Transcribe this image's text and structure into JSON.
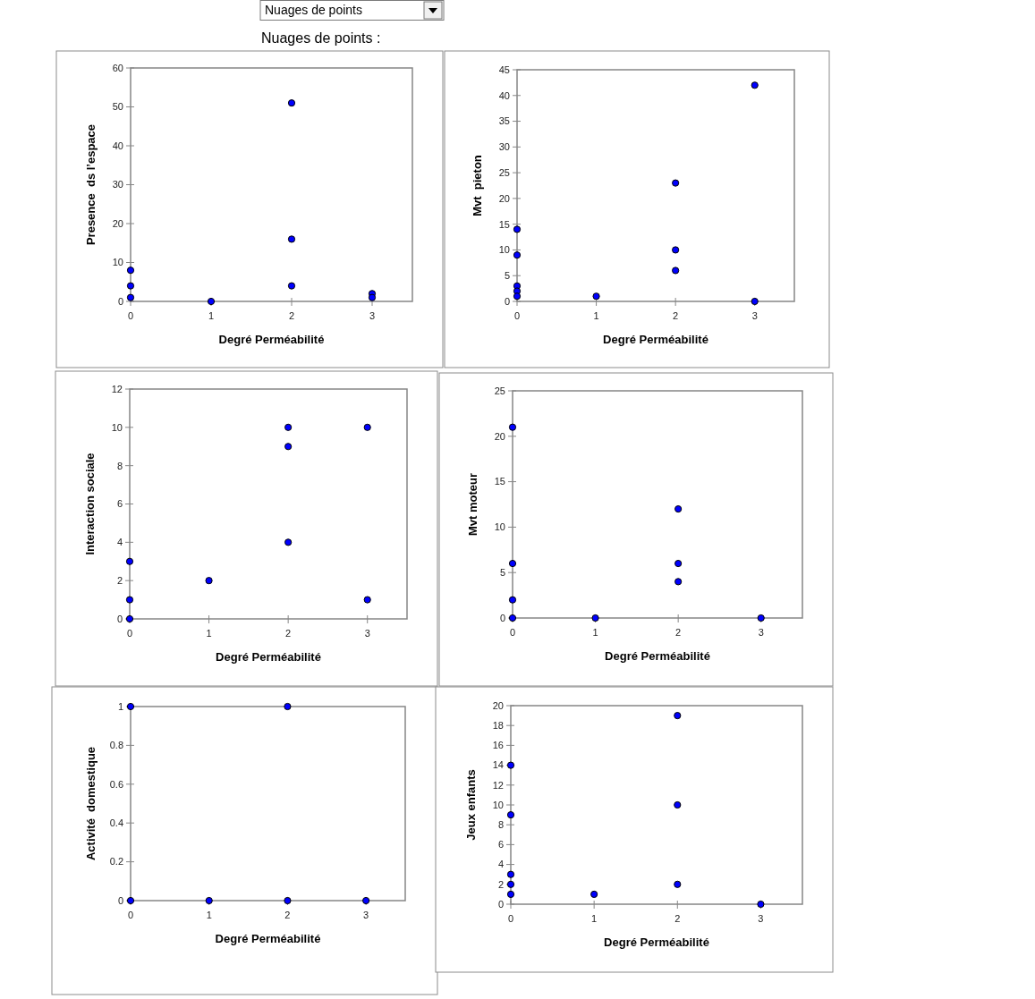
{
  "chart_data": [
    {
      "type": "scatter",
      "annotations": [
        "Nuages de points",
        "Nuages de points :"
      ],
      "xlabel": "Degré Perméabilité",
      "ylabel": "Presence  ds l’espace",
      "xlim": [
        0,
        3.5
      ],
      "xticks": [
        0,
        1,
        2,
        3
      ],
      "ylim": [
        0,
        60
      ],
      "yticks": [
        0,
        10,
        20,
        30,
        40,
        50,
        60
      ],
      "marker": "circle",
      "grid": false,
      "series": [
        {
          "color": "#0000ff",
          "x": [
            0,
            0,
            0,
            1,
            2,
            2,
            2,
            3,
            3
          ],
          "values": [
            8,
            4,
            1,
            0,
            51,
            16,
            4,
            2,
            1
          ]
        }
      ]
    },
    {
      "type": "scatter",
      "xlabel": "Degré Perméabilité",
      "ylabel": "Mvt  pieton",
      "xlim": [
        0,
        3.5
      ],
      "xticks": [
        0,
        1,
        2,
        3
      ],
      "ylim": [
        0,
        45
      ],
      "yticks": [
        0,
        5,
        10,
        15,
        20,
        25,
        30,
        35,
        40,
        45
      ],
      "marker": "circle",
      "grid": false,
      "series": [
        {
          "color": "#0000ff",
          "x": [
            0,
            0,
            0,
            0,
            0,
            1,
            2,
            2,
            2,
            3,
            3
          ],
          "values": [
            14,
            9,
            3,
            2,
            1,
            1,
            23,
            10,
            6,
            42,
            0
          ]
        }
      ]
    },
    {
      "type": "scatter",
      "xlabel": "Degré Perméabilité",
      "ylabel": "Interaction sociale",
      "xlim": [
        0,
        3.5
      ],
      "xticks": [
        0,
        1,
        2,
        3
      ],
      "ylim": [
        0,
        12
      ],
      "yticks": [
        0,
        2,
        4,
        6,
        8,
        10,
        12
      ],
      "marker": "circle",
      "grid": false,
      "series": [
        {
          "color": "#0000ff",
          "x": [
            0,
            0,
            0,
            1,
            2,
            2,
            2,
            3,
            3
          ],
          "values": [
            3,
            1,
            0,
            2,
            10,
            9,
            4,
            10,
            1
          ]
        }
      ]
    },
    {
      "type": "scatter",
      "xlabel": "Degré Perméabilité",
      "ylabel": "Mvt moteur",
      "xlim": [
        0,
        3.5
      ],
      "xticks": [
        0,
        1,
        2,
        3
      ],
      "ylim": [
        0,
        25
      ],
      "yticks": [
        0,
        5,
        10,
        15,
        20,
        25
      ],
      "marker": "circle",
      "grid": false,
      "series": [
        {
          "color": "#0000ff",
          "x": [
            0,
            0,
            0,
            0,
            1,
            2,
            2,
            2,
            3
          ],
          "values": [
            21,
            6,
            2,
            0,
            0,
            12,
            6,
            4,
            0
          ]
        }
      ]
    },
    {
      "type": "scatter",
      "xlabel": "Degré Perméabilité",
      "ylabel": "Activité  domestique",
      "xlim": [
        0,
        3.5
      ],
      "xticks": [
        0,
        1,
        2,
        3
      ],
      "ylim": [
        0,
        1
      ],
      "yticks": [
        0,
        0.2,
        0.4,
        0.6,
        0.8,
        1
      ],
      "marker": "circle",
      "grid": false,
      "series": [
        {
          "color": "#0000ff",
          "x": [
            0,
            0,
            1,
            2,
            2,
            3
          ],
          "values": [
            1,
            0,
            0,
            1,
            0,
            0
          ]
        }
      ]
    },
    {
      "type": "scatter",
      "xlabel": "Degré Perméabilité",
      "ylabel": "Jeux enfants",
      "xlim": [
        0,
        3.5
      ],
      "xticks": [
        0,
        1,
        2,
        3
      ],
      "ylim": [
        0,
        20
      ],
      "yticks": [
        0,
        2,
        4,
        6,
        8,
        10,
        12,
        14,
        16,
        18,
        20
      ],
      "marker": "circle",
      "grid": false,
      "series": [
        {
          "color": "#0000ff",
          "x": [
            0,
            0,
            0,
            0,
            0,
            1,
            2,
            2,
            2,
            3
          ],
          "values": [
            14,
            9,
            3,
            2,
            1,
            1,
            19,
            10,
            2,
            0
          ]
        }
      ]
    }
  ]
}
